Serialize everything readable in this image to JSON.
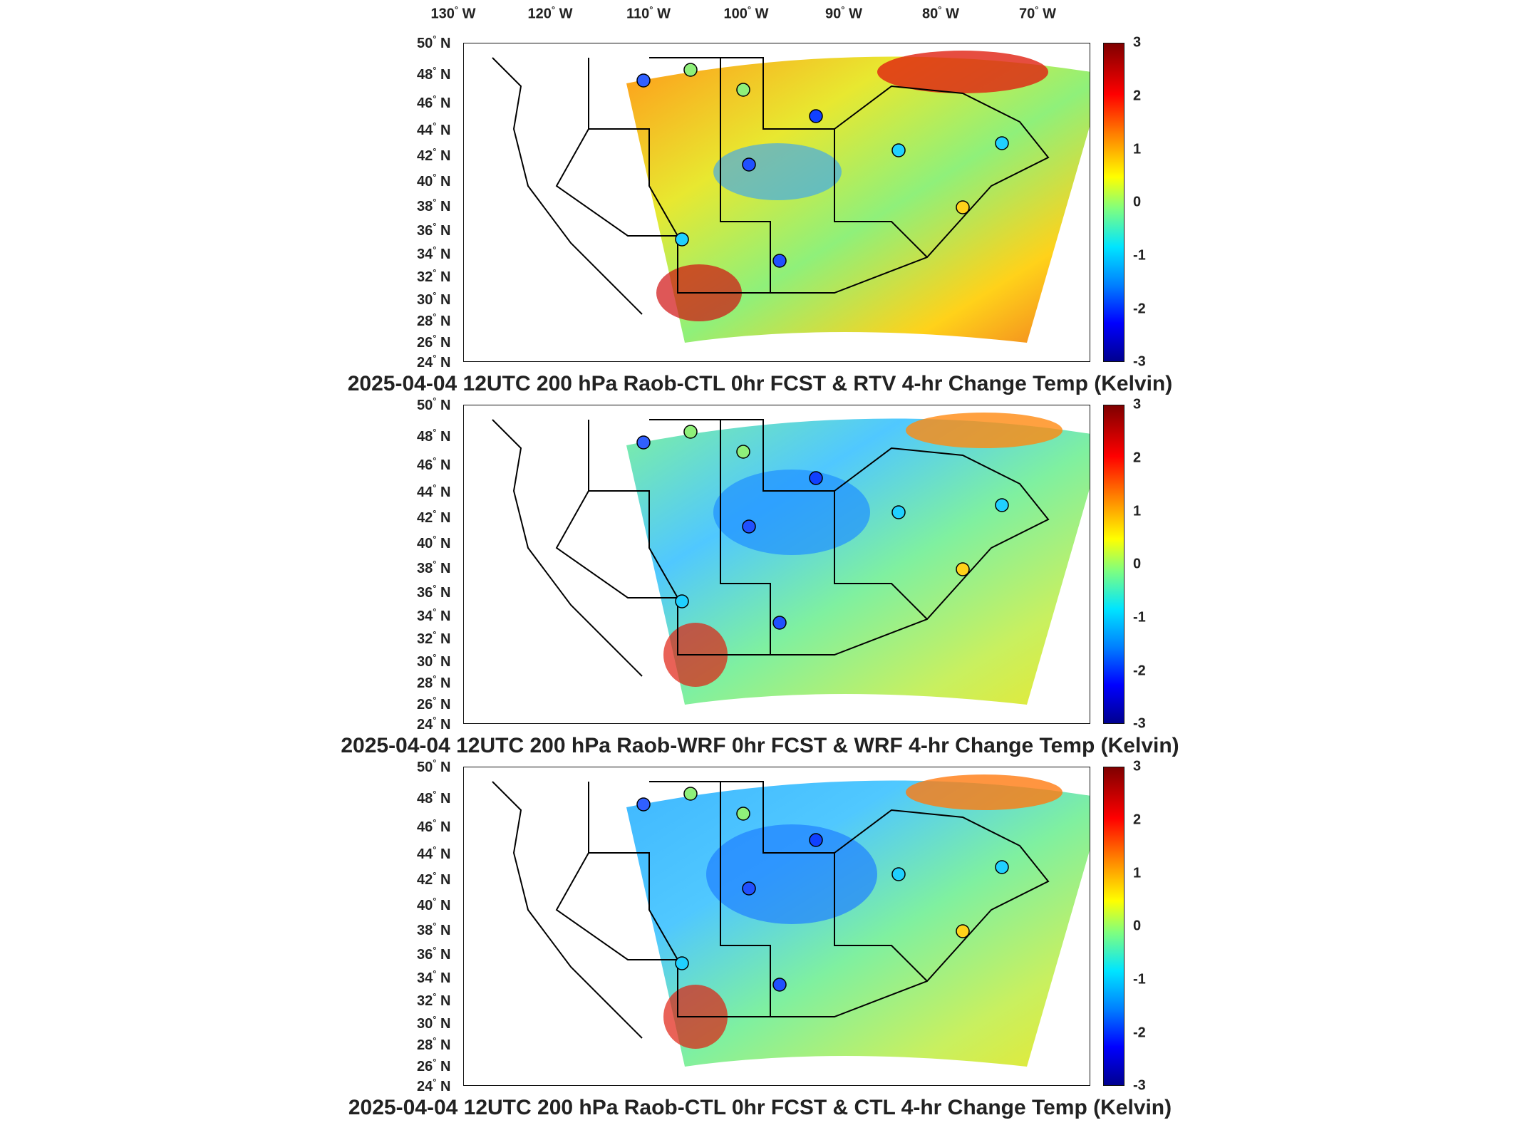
{
  "longitude_labels": [
    "130",
    "120",
    "110",
    "100",
    "90",
    "80",
    "70"
  ],
  "longitude_suffix": "W",
  "latitude_labels": [
    "50",
    "48",
    "46",
    "44",
    "42",
    "40",
    "38",
    "36",
    "34",
    "32",
    "30",
    "28",
    "26",
    "24"
  ],
  "latitude_suffix": "N",
  "degree_symbol": "°",
  "colorbar": {
    "ticks": [
      "3",
      "2",
      "1",
      "0",
      "-1",
      "-2",
      "-3"
    ],
    "colors": [
      "#7f0000",
      "#ff0000",
      "#ff7a00",
      "#ffff00",
      "#7fff7f",
      "#00e5ff",
      "#0080ff",
      "#0000ff",
      "#00008f"
    ]
  },
  "panels": [
    {
      "title": "2025-04-04 12UTC 200 hPa Raob-CTL 0hr FCST & RTV 4-hr Change Temp (Kelvin)",
      "field_tone": "warm"
    },
    {
      "title": "2025-04-04 12UTC 200 hPa Raob-WRF 0hr FCST & WRF 4-hr Change Temp (Kelvin)",
      "field_tone": "cool"
    },
    {
      "title": "2025-04-04 12UTC 200 hPa Raob-CTL 0hr FCST & CTL 4-hr Change Temp (Kelvin)",
      "field_tone": "cool"
    }
  ]
}
